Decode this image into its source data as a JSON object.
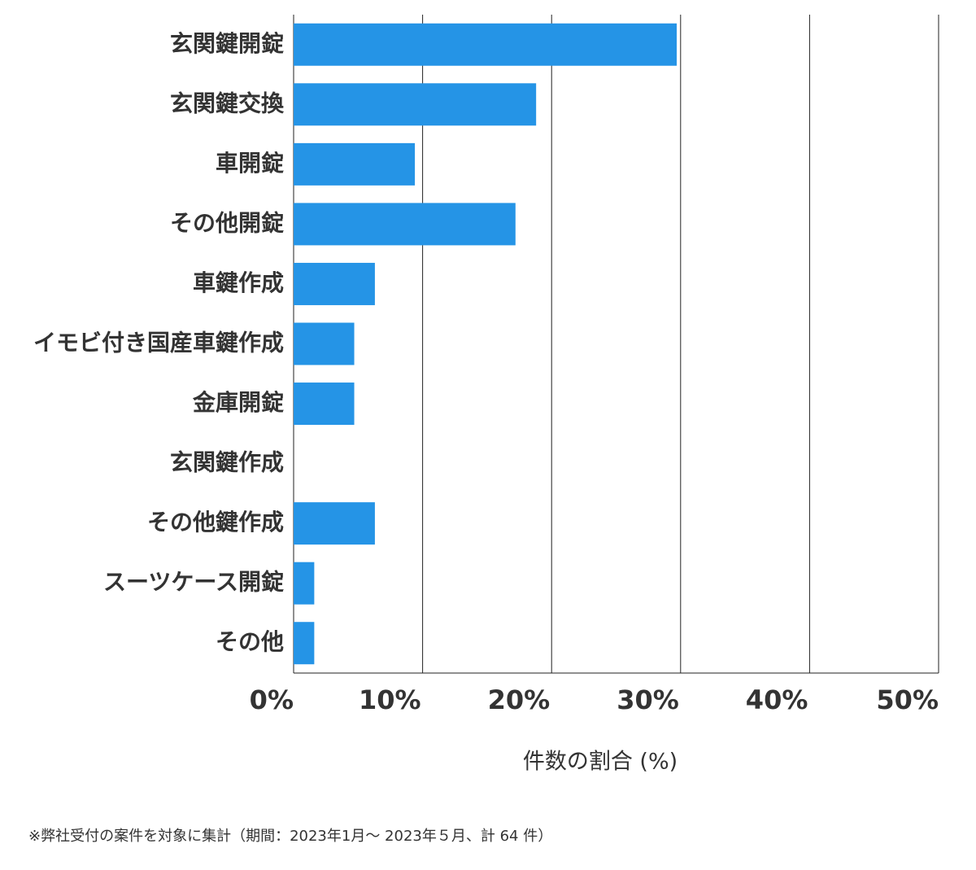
{
  "chart_data": {
    "type": "barh",
    "categories": [
      "玄関鍵開錠",
      "玄関鍵交換",
      "車開錠",
      "その他開錠",
      "車鍵作成",
      "イモビ付き国産車鍵作成",
      "金庫開錠",
      "玄関鍵作成",
      "その他鍵作成",
      "スーツケース開錠",
      "その他"
    ],
    "values": [
      29.7,
      18.8,
      9.4,
      17.2,
      6.3,
      4.7,
      4.7,
      0,
      6.3,
      1.6,
      1.6
    ],
    "color": "#2594e6",
    "xlim": [
      0,
      50
    ],
    "xticks": [
      {
        "value": 0,
        "label": "0%"
      },
      {
        "value": 10,
        "label": "10%"
      },
      {
        "value": 20,
        "label": "20%"
      },
      {
        "value": 30,
        "label": "30%"
      },
      {
        "value": 40,
        "label": "40%"
      },
      {
        "value": 50,
        "label": "50%"
      }
    ],
    "xlabel": "件数の割合 (%)",
    "grid": true,
    "note": "※弊社受付の案件を対象に集計（期間：2023年1月～ 2023年５月、計 64 件）"
  }
}
